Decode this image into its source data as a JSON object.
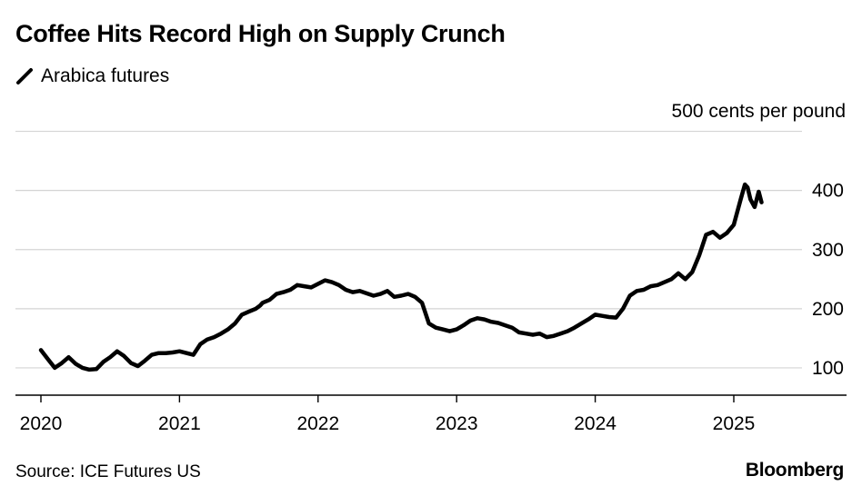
{
  "header": {
    "title": "Coffee Hits Record High on Supply Crunch"
  },
  "footer": {
    "source": "Source: ICE Futures US",
    "brand": "Bloomberg"
  },
  "chart_data": {
    "type": "line",
    "title": "Coffee Hits Record High on Supply Crunch",
    "unit_label": "500 cents per pound",
    "xlabel": "",
    "ylabel": "cents per pound",
    "ylim": [
      55,
      500
    ],
    "xlim": [
      2020.0,
      2025.6
    ],
    "x_ticks": [
      2020,
      2021,
      2022,
      2023,
      2024,
      2025
    ],
    "x_tick_labels": [
      "2020",
      "2021",
      "2022",
      "2023",
      "2024",
      "2025"
    ],
    "y_ticks": [
      100,
      200,
      300,
      400
    ],
    "y_tick_labels": [
      "100",
      "200",
      "300",
      "400"
    ],
    "grid": true,
    "legend": "top-left",
    "colors": {
      "line": "#000000",
      "grid": "#d4d4d4",
      "axis": "#000000"
    },
    "series": [
      {
        "name": "Arabica futures",
        "x": [
          2020.0,
          2020.05,
          2020.1,
          2020.15,
          2020.2,
          2020.25,
          2020.3,
          2020.35,
          2020.4,
          2020.45,
          2020.5,
          2020.55,
          2020.6,
          2020.65,
          2020.7,
          2020.75,
          2020.8,
          2020.85,
          2020.9,
          2020.95,
          2021.0,
          2021.1,
          2021.15,
          2021.2,
          2021.25,
          2021.3,
          2021.35,
          2021.4,
          2021.45,
          2021.5,
          2021.55,
          2021.58,
          2021.6,
          2021.65,
          2021.7,
          2021.75,
          2021.8,
          2021.85,
          2021.9,
          2021.95,
          2022.0,
          2022.05,
          2022.1,
          2022.15,
          2022.2,
          2022.25,
          2022.3,
          2022.35,
          2022.4,
          2022.45,
          2022.5,
          2022.55,
          2022.6,
          2022.65,
          2022.7,
          2022.75,
          2022.8,
          2022.85,
          2022.9,
          2022.95,
          2023.0,
          2023.05,
          2023.1,
          2023.15,
          2023.2,
          2023.25,
          2023.3,
          2023.35,
          2023.4,
          2023.45,
          2023.5,
          2023.55,
          2023.6,
          2023.65,
          2023.7,
          2023.75,
          2023.8,
          2023.85,
          2023.9,
          2023.95,
          2024.0,
          2024.05,
          2024.1,
          2024.15,
          2024.2,
          2024.25,
          2024.3,
          2024.35,
          2024.4,
          2024.45,
          2024.5,
          2024.55,
          2024.6,
          2024.65,
          2024.7,
          2024.75,
          2024.8,
          2024.85,
          2024.9,
          2024.95,
          2025.0,
          2025.05,
          2025.08,
          2025.1,
          2025.12,
          2025.15,
          2025.18,
          2025.2
        ],
        "values": [
          130,
          115,
          100,
          108,
          118,
          107,
          100,
          97,
          98,
          110,
          118,
          128,
          120,
          108,
          103,
          112,
          122,
          125,
          125,
          126,
          128,
          122,
          140,
          148,
          152,
          158,
          165,
          175,
          190,
          195,
          200,
          205,
          210,
          215,
          225,
          228,
          232,
          240,
          238,
          236,
          242,
          248,
          245,
          240,
          232,
          228,
          230,
          226,
          222,
          225,
          230,
          220,
          222,
          225,
          220,
          210,
          175,
          168,
          165,
          162,
          165,
          172,
          180,
          184,
          182,
          178,
          176,
          172,
          168,
          160,
          158,
          156,
          158,
          152,
          154,
          158,
          162,
          168,
          175,
          182,
          190,
          188,
          186,
          185,
          200,
          222,
          230,
          232,
          238,
          240,
          245,
          250,
          260,
          250,
          262,
          290,
          325,
          330,
          320,
          328,
          342,
          385,
          410,
          405,
          385,
          372,
          398,
          380
        ]
      }
    ]
  }
}
